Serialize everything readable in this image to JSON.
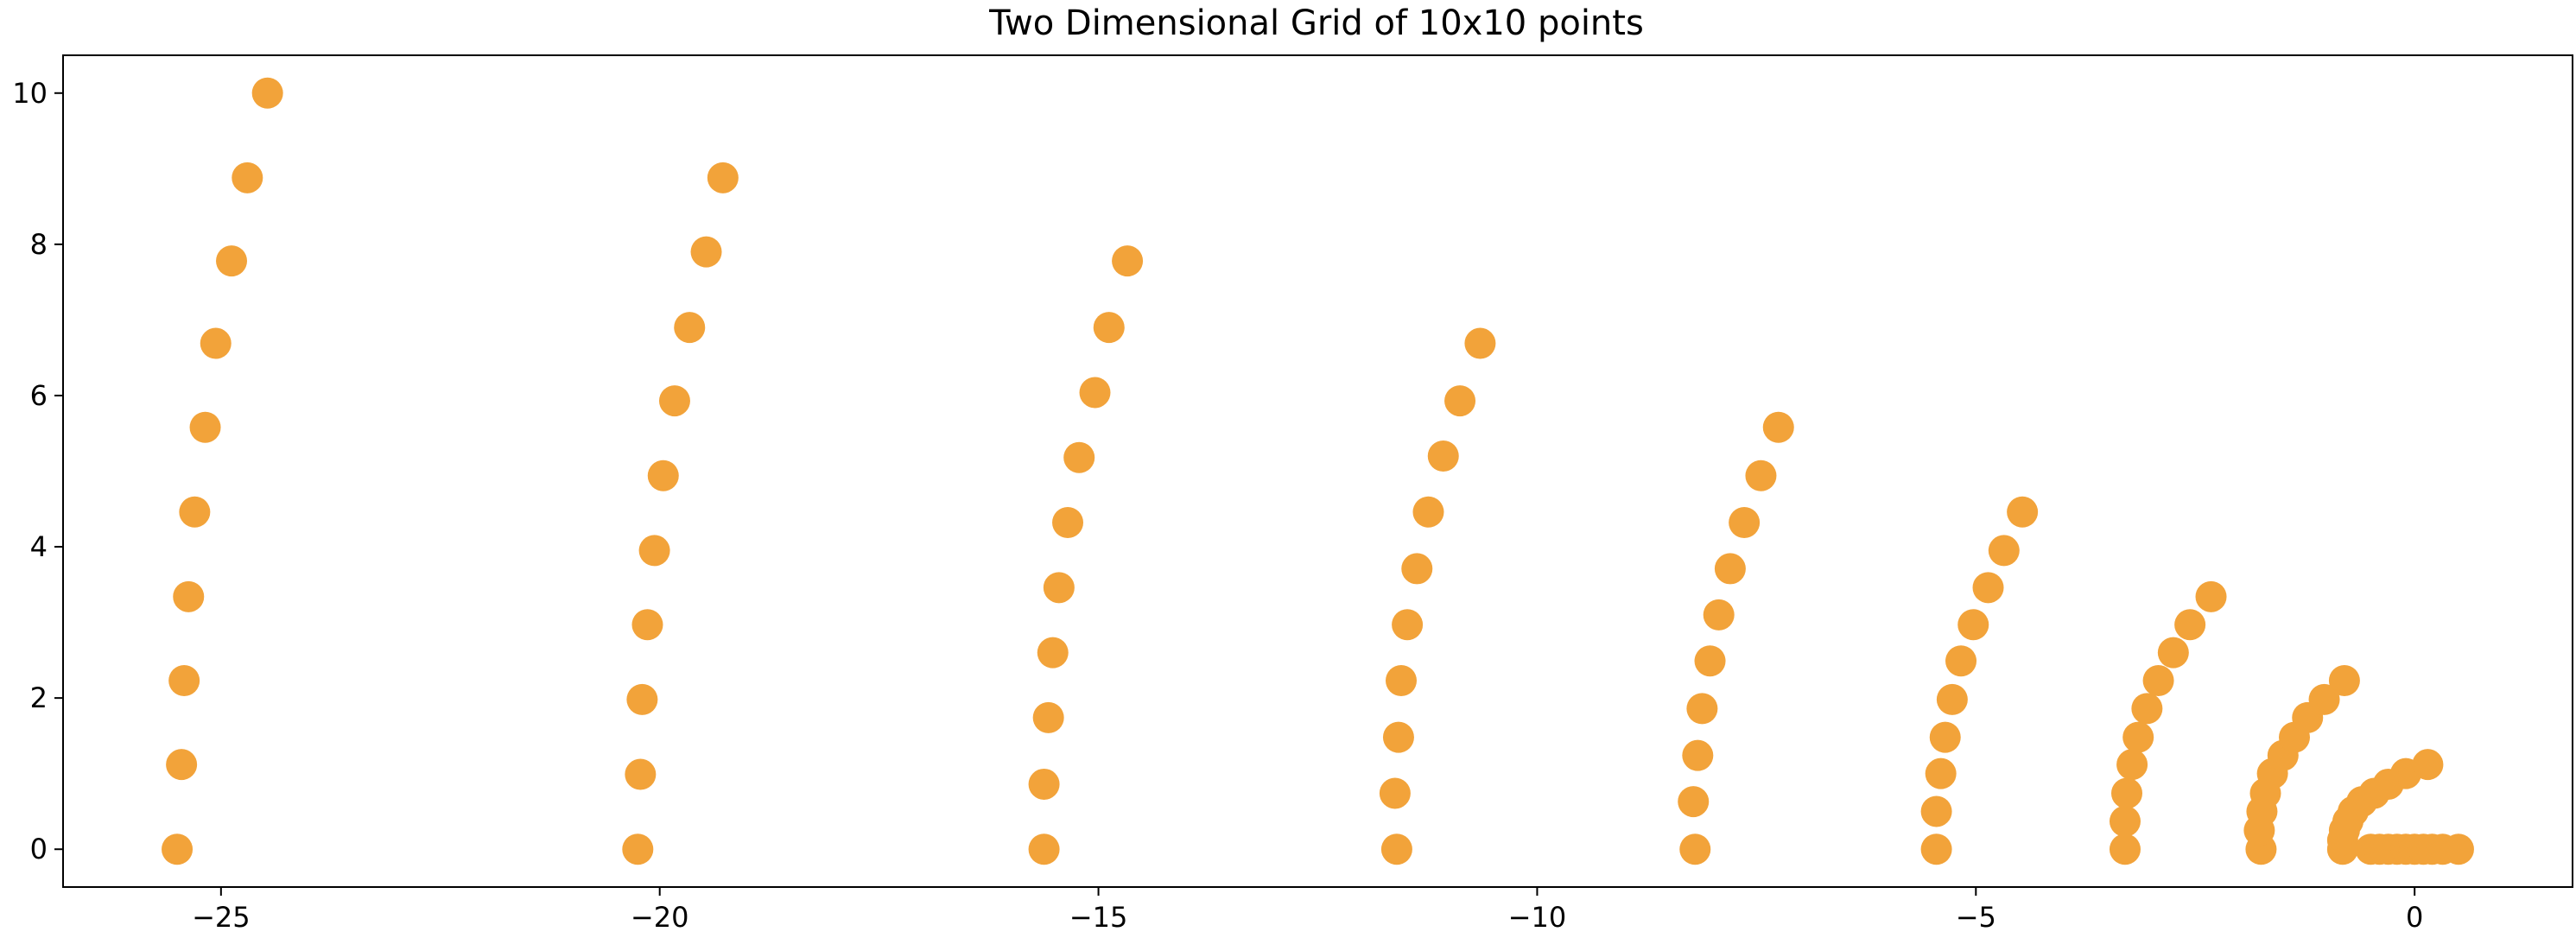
{
  "chart_data": {
    "type": "scatter",
    "title": "Two Dimensional Grid of 10x10 points",
    "xlabel": "",
    "ylabel": "",
    "xlim": [
      -26.8,
      1.8
    ],
    "ylim": [
      -0.5,
      10.5
    ],
    "xticks": [
      -25,
      -20,
      -15,
      -10,
      -5,
      0
    ],
    "xtick_labels": [
      "−25",
      "−20",
      "−15",
      "−10",
      "−5",
      "0"
    ],
    "yticks": [
      0,
      2,
      4,
      6,
      8,
      10
    ],
    "ytick_labels": [
      "0",
      "2",
      "4",
      "6",
      "8",
      "10"
    ],
    "grid": false,
    "marker_color": "#f2a33a",
    "series": [
      {
        "values": [
          {
            "x": -25.5,
            "y": 0.0
          },
          {
            "x": -25.45,
            "y": 1.12
          },
          {
            "x": -25.42,
            "y": 2.23
          },
          {
            "x": -25.37,
            "y": 3.34
          },
          {
            "x": -25.3,
            "y": 4.46
          },
          {
            "x": -25.18,
            "y": 5.58
          },
          {
            "x": -25.06,
            "y": 6.69
          },
          {
            "x": -24.88,
            "y": 7.78
          },
          {
            "x": -24.7,
            "y": 8.88
          },
          {
            "x": -24.47,
            "y": 10.0
          },
          {
            "x": -20.25,
            "y": 0.0
          },
          {
            "x": -20.22,
            "y": 0.99
          },
          {
            "x": -20.2,
            "y": 1.98
          },
          {
            "x": -20.14,
            "y": 2.97
          },
          {
            "x": -20.06,
            "y": 3.95
          },
          {
            "x": -19.96,
            "y": 4.94
          },
          {
            "x": -19.83,
            "y": 5.93
          },
          {
            "x": -19.66,
            "y": 6.9
          },
          {
            "x": -19.47,
            "y": 7.9
          },
          {
            "x": -19.28,
            "y": 8.88
          },
          {
            "x": -15.62,
            "y": 0.0
          },
          {
            "x": -15.62,
            "y": 0.86
          },
          {
            "x": -15.57,
            "y": 1.74
          },
          {
            "x": -15.52,
            "y": 2.6
          },
          {
            "x": -15.45,
            "y": 3.46
          },
          {
            "x": -15.35,
            "y": 4.32
          },
          {
            "x": -15.22,
            "y": 5.18
          },
          {
            "x": -15.04,
            "y": 6.04
          },
          {
            "x": -14.88,
            "y": 6.9
          },
          {
            "x": -14.67,
            "y": 7.78
          },
          {
            "x": -11.6,
            "y": 0.0
          },
          {
            "x": -11.62,
            "y": 0.74
          },
          {
            "x": -11.58,
            "y": 1.48
          },
          {
            "x": -11.55,
            "y": 2.23
          },
          {
            "x": -11.48,
            "y": 2.97
          },
          {
            "x": -11.37,
            "y": 3.71
          },
          {
            "x": -11.24,
            "y": 4.46
          },
          {
            "x": -11.07,
            "y": 5.2
          },
          {
            "x": -10.88,
            "y": 5.93
          },
          {
            "x": -10.65,
            "y": 6.69
          },
          {
            "x": -8.2,
            "y": 0.0
          },
          {
            "x": -8.22,
            "y": 0.63
          },
          {
            "x": -8.17,
            "y": 1.24
          },
          {
            "x": -8.12,
            "y": 1.86
          },
          {
            "x": -8.03,
            "y": 2.49
          },
          {
            "x": -7.93,
            "y": 3.1
          },
          {
            "x": -7.8,
            "y": 3.71
          },
          {
            "x": -7.64,
            "y": 4.32
          },
          {
            "x": -7.45,
            "y": 4.94
          },
          {
            "x": -7.25,
            "y": 5.58
          },
          {
            "x": -5.45,
            "y": 0.0
          },
          {
            "x": -5.45,
            "y": 0.5
          },
          {
            "x": -5.4,
            "y": 1.0
          },
          {
            "x": -5.35,
            "y": 1.48
          },
          {
            "x": -5.27,
            "y": 1.98
          },
          {
            "x": -5.17,
            "y": 2.49
          },
          {
            "x": -5.03,
            "y": 2.97
          },
          {
            "x": -4.86,
            "y": 3.46
          },
          {
            "x": -4.68,
            "y": 3.95
          },
          {
            "x": -4.47,
            "y": 4.46
          },
          {
            "x": -3.3,
            "y": 0.0
          },
          {
            "x": -3.3,
            "y": 0.37
          },
          {
            "x": -3.28,
            "y": 0.74
          },
          {
            "x": -3.22,
            "y": 1.12
          },
          {
            "x": -3.15,
            "y": 1.48
          },
          {
            "x": -3.05,
            "y": 1.86
          },
          {
            "x": -2.92,
            "y": 2.23
          },
          {
            "x": -2.75,
            "y": 2.6
          },
          {
            "x": -2.56,
            "y": 2.97
          },
          {
            "x": -2.32,
            "y": 3.34
          },
          {
            "x": -1.75,
            "y": 0.0
          },
          {
            "x": -1.77,
            "y": 0.25
          },
          {
            "x": -1.74,
            "y": 0.5
          },
          {
            "x": -1.7,
            "y": 0.74
          },
          {
            "x": -1.62,
            "y": 1.0
          },
          {
            "x": -1.5,
            "y": 1.24
          },
          {
            "x": -1.37,
            "y": 1.48
          },
          {
            "x": -1.22,
            "y": 1.74
          },
          {
            "x": -1.03,
            "y": 1.98
          },
          {
            "x": -0.8,
            "y": 2.23
          },
          {
            "x": -0.82,
            "y": 0.0
          },
          {
            "x": -0.82,
            "y": 0.12
          },
          {
            "x": -0.8,
            "y": 0.25
          },
          {
            "x": -0.76,
            "y": 0.37
          },
          {
            "x": -0.7,
            "y": 0.5
          },
          {
            "x": -0.6,
            "y": 0.63
          },
          {
            "x": -0.46,
            "y": 0.74
          },
          {
            "x": -0.3,
            "y": 0.86
          },
          {
            "x": -0.1,
            "y": 1.0
          },
          {
            "x": 0.15,
            "y": 1.12
          },
          {
            "x": -0.5,
            "y": 0.0
          },
          {
            "x": -0.4,
            "y": 0.0
          },
          {
            "x": -0.3,
            "y": 0.0
          },
          {
            "x": -0.2,
            "y": 0.0
          },
          {
            "x": -0.1,
            "y": 0.0
          },
          {
            "x": 0.0,
            "y": 0.0
          },
          {
            "x": 0.1,
            "y": 0.0
          },
          {
            "x": 0.2,
            "y": 0.0
          },
          {
            "x": 0.32,
            "y": 0.0
          },
          {
            "x": 0.5,
            "y": 0.0
          }
        ]
      }
    ]
  }
}
